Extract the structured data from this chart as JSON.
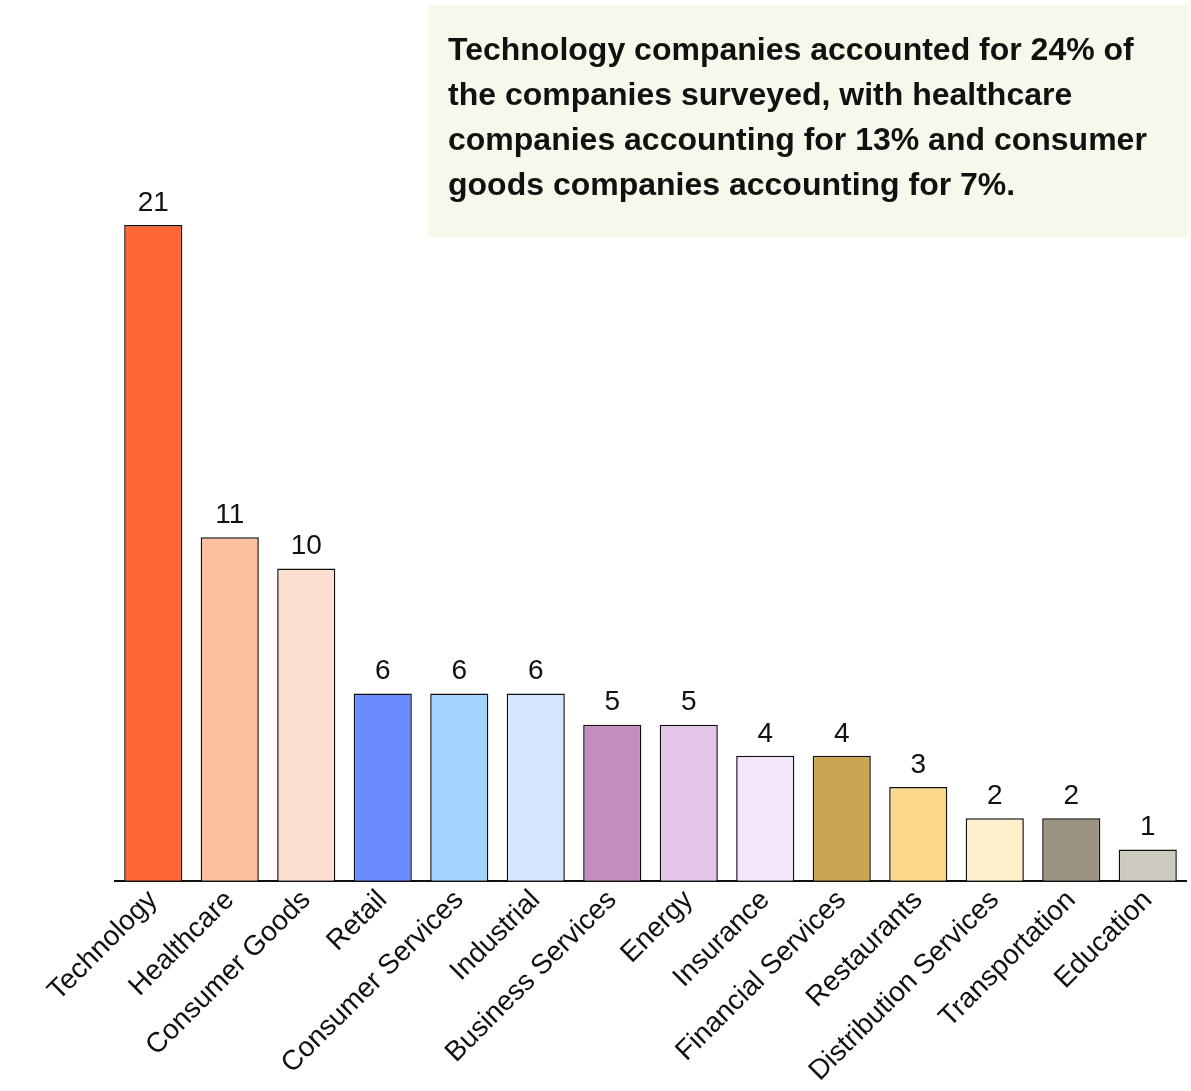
{
  "chart_data": {
    "type": "bar",
    "categories": [
      "Technology",
      "Healthcare",
      "Consumer Goods",
      "Retail",
      "Consumer Services",
      "Industrial",
      "Business Services",
      "Energy",
      "Insurance",
      "Financial Services",
      "Restaurants",
      "Distribution Services",
      "Transportation",
      "Education"
    ],
    "values": [
      21,
      11,
      10,
      6,
      6,
      6,
      5,
      5,
      4,
      4,
      3,
      2,
      2,
      1
    ],
    "colors": [
      "#ff6633",
      "#fcc09c",
      "#fde0d2",
      "#6b8cff",
      "#a5d3ff",
      "#d3e6fc",
      "#c38dbf",
      "#e5c5ea",
      "#f3e6fb",
      "#cca552",
      "#fad78a",
      "#fff0cc",
      "#9b9483",
      "#cccabf"
    ],
    "data_labels": true,
    "annotations": [
      "Technology companies accounted for 24% of the companies surveyed, with healthcare companies accounting for 13% and consumer goods companies accounting for 7%."
    ]
  }
}
